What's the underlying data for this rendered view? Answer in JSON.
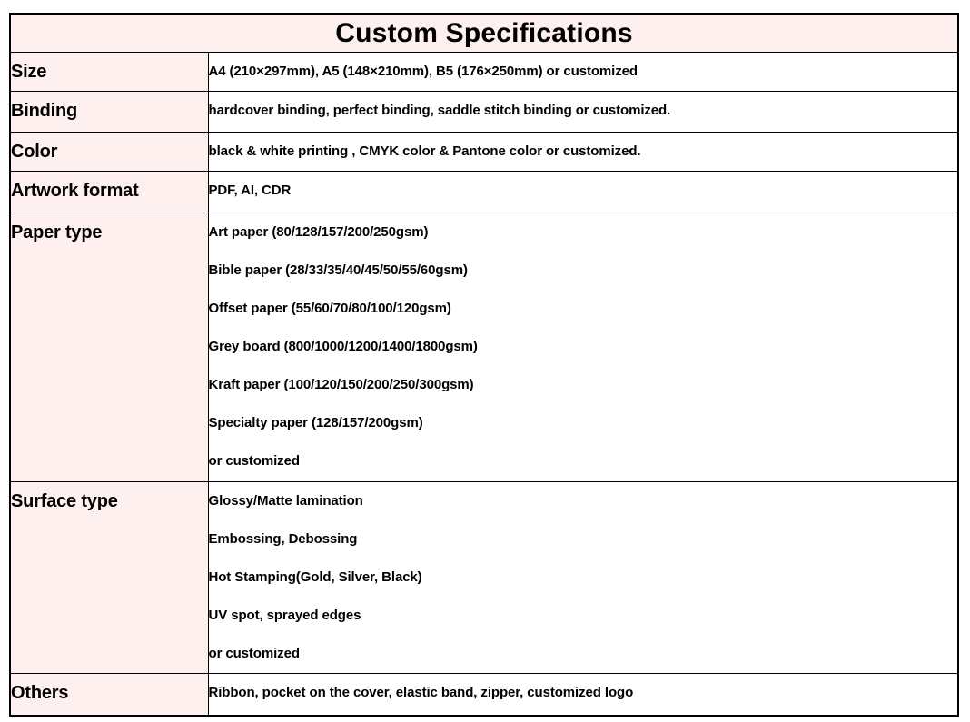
{
  "title": "Custom Specifications",
  "colors": {
    "header_background": "#fdf0ee",
    "label_background": "#fdf0ee",
    "value_background": "#ffffff",
    "border": "#000000",
    "text": "#000000"
  },
  "rows": [
    {
      "label": "Size",
      "values": [
        "A4 (210×297mm), A5 (148×210mm), B5 (176×250mm) or customized"
      ]
    },
    {
      "label": "Binding",
      "values": [
        "hardcover binding, perfect binding, saddle stitch binding or customized."
      ]
    },
    {
      "label": "Color",
      "values": [
        "black & white printing , CMYK color & Pantone color or customized."
      ]
    },
    {
      "label": "Artwork format",
      "values": [
        "PDF, AI, CDR"
      ]
    },
    {
      "label": "Paper type",
      "values": [
        "Art paper (80/128/157/200/250gsm)",
        "Bible paper (28/33/35/40/45/50/55/60gsm)",
        "Offset paper (55/60/70/80/100/120gsm)",
        "Grey board (800/1000/1200/1400/1800gsm)",
        "Kraft paper (100/120/150/200/250/300gsm)",
        "Specialty paper (128/157/200gsm)",
        "or customized"
      ]
    },
    {
      "label": "Surface type",
      "values": [
        "Glossy/Matte lamination",
        "Embossing, Debossing",
        "Hot Stamping(Gold, Silver, Black)",
        "UV spot, sprayed edges",
        "or customized"
      ]
    },
    {
      "label": "Others",
      "values": [
        "Ribbon, pocket on the cover, elastic band, zipper, customized logo"
      ]
    }
  ]
}
